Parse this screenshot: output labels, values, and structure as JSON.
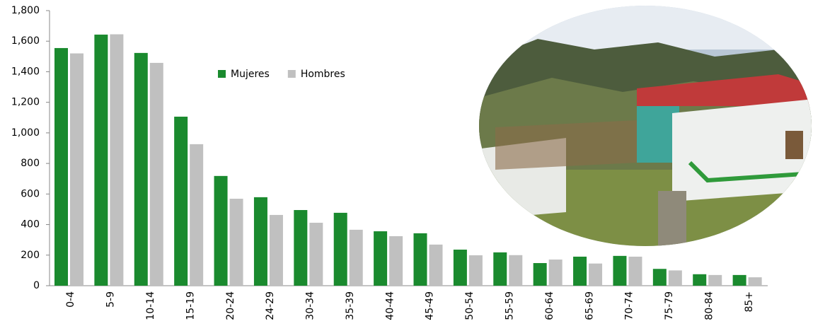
{
  "chart_data": {
    "type": "bar",
    "categories": [
      "0-4",
      "5-9",
      "10-14",
      "15-19",
      "20-24",
      "24-29",
      "30-34",
      "35-39",
      "40-44",
      "45-49",
      "50-54",
      "55-59",
      "60-64",
      "65-69",
      "70-74",
      "75-79",
      "80-84",
      "85+"
    ],
    "series": [
      {
        "name": "Mujeres",
        "color": "#1a8a2e",
        "values": [
          1555,
          1643,
          1523,
          1106,
          718,
          579,
          495,
          477,
          356,
          343,
          236,
          218,
          148,
          190,
          195,
          110,
          75,
          70
        ]
      },
      {
        "name": "Hombres",
        "color": "#c0c0c0",
        "values": [
          1520,
          1645,
          1458,
          926,
          569,
          463,
          412,
          366,
          324,
          269,
          199,
          200,
          171,
          145,
          190,
          100,
          70,
          55
        ]
      }
    ],
    "ylim": [
      0,
      1800
    ],
    "yticks": [
      0,
      200,
      400,
      600,
      800,
      {
        "value": 1000,
        "label": "1,000"
      },
      {
        "value": 1200,
        "label": "1,200"
      },
      {
        "value": 1400,
        "label": "1,400"
      },
      {
        "value": 1600,
        "label": "1,600"
      },
      {
        "value": 1800,
        "label": "1,800"
      }
    ],
    "grid": false,
    "legend": "top"
  }
}
